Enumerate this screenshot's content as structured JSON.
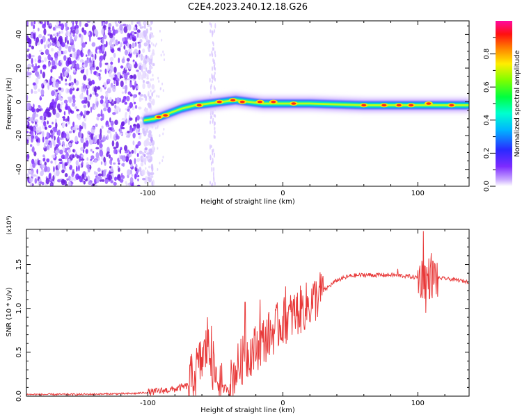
{
  "figure": {
    "title": "C2E4.2023.240.12.18.G26"
  },
  "colors": {
    "snr_line": "#e83a3a",
    "track_core": "#ff2a1a",
    "noise": "#7a2cff",
    "axis": "#000000"
  },
  "chart_data": [
    {
      "type": "heatmap",
      "xlabel": "Height of straight line (km)",
      "ylabel": "Frequency (Hz)",
      "xlim": [
        -190,
        138
      ],
      "ylim": [
        -50,
        48
      ],
      "xticks": [
        -100,
        0,
        100
      ],
      "yticks": [
        -40,
        -20,
        0,
        20,
        40
      ],
      "colorbar": {
        "label": "Normalized spectral amplitude",
        "range": [
          0,
          1
        ],
        "ticks": [
          "0.0",
          "0.2",
          "0.4",
          "0.6",
          "0.8"
        ],
        "colormap": "rainbow (white→violet→blue→cyan→green→yellow→red→magenta)"
      },
      "noise_region_x": [
        -190,
        -103
      ],
      "track": [
        {
          "x": -103,
          "y": -11
        },
        {
          "x": -95,
          "y": -10
        },
        {
          "x": -85,
          "y": -7
        },
        {
          "x": -75,
          "y": -4
        },
        {
          "x": -65,
          "y": -2
        },
        {
          "x": -55,
          "y": -1
        },
        {
          "x": -45,
          "y": 0
        },
        {
          "x": -35,
          "y": 1
        },
        {
          "x": -25,
          "y": 0
        },
        {
          "x": -15,
          "y": -1
        },
        {
          "x": 0,
          "y": -1
        },
        {
          "x": 20,
          "y": -1
        },
        {
          "x": 40,
          "y": -1.5
        },
        {
          "x": 60,
          "y": -2
        },
        {
          "x": 80,
          "y": -2
        },
        {
          "x": 100,
          "y": -2
        },
        {
          "x": 120,
          "y": -2
        },
        {
          "x": 138,
          "y": -2
        }
      ],
      "track_peaks": [
        {
          "x": -92,
          "y": -9
        },
        {
          "x": -87,
          "y": -8
        },
        {
          "x": -62,
          "y": -2
        },
        {
          "x": -47,
          "y": 0
        },
        {
          "x": -37,
          "y": 1
        },
        {
          "x": -30,
          "y": 0
        },
        {
          "x": -17,
          "y": 0
        },
        {
          "x": -7,
          "y": 0
        },
        {
          "x": 8,
          "y": -1
        },
        {
          "x": 60,
          "y": -2
        },
        {
          "x": 75,
          "y": -2
        },
        {
          "x": 86,
          "y": -2
        },
        {
          "x": 95,
          "y": -2
        },
        {
          "x": 108,
          "y": -1
        },
        {
          "x": 125,
          "y": -2
        }
      ]
    },
    {
      "type": "line",
      "xlabel": "Height of straight line (km)",
      "ylabel": "SNR (10 * v/v)",
      "y_multiplier": "(x10⁴)",
      "xlim": [
        -190,
        138
      ],
      "ylim": [
        0,
        1.9
      ],
      "xticks": [
        -100,
        0,
        100
      ],
      "yticks": [
        "0.0",
        "0.5",
        "1.0",
        "1.5"
      ],
      "series_envelope": [
        {
          "x": -190,
          "y": 0.02
        },
        {
          "x": -150,
          "y": 0.02
        },
        {
          "x": -110,
          "y": 0.03
        },
        {
          "x": -95,
          "y": 0.05
        },
        {
          "x": -80,
          "y": 0.08
        },
        {
          "x": -70,
          "y": 0.12
        },
        {
          "x": -62,
          "y": 0.35
        },
        {
          "x": -56,
          "y": 0.55
        },
        {
          "x": -50,
          "y": 0.25
        },
        {
          "x": -45,
          "y": 0.08
        },
        {
          "x": -40,
          "y": 0.1
        },
        {
          "x": -35,
          "y": 0.3
        },
        {
          "x": -28,
          "y": 0.45
        },
        {
          "x": -20,
          "y": 0.55
        },
        {
          "x": -10,
          "y": 0.7
        },
        {
          "x": 0,
          "y": 0.85
        },
        {
          "x": 10,
          "y": 0.95
        },
        {
          "x": 20,
          "y": 1.05
        },
        {
          "x": 30,
          "y": 1.2
        },
        {
          "x": 40,
          "y": 1.32
        },
        {
          "x": 50,
          "y": 1.37
        },
        {
          "x": 60,
          "y": 1.38
        },
        {
          "x": 70,
          "y": 1.38
        },
        {
          "x": 80,
          "y": 1.38
        },
        {
          "x": 90,
          "y": 1.37
        },
        {
          "x": 100,
          "y": 1.35
        },
        {
          "x": 110,
          "y": 1.35
        },
        {
          "x": 120,
          "y": 1.34
        },
        {
          "x": 130,
          "y": 1.32
        },
        {
          "x": 138,
          "y": 1.3
        }
      ],
      "series_spikes": [
        {
          "x": -56,
          "y": 0.9
        },
        {
          "x": -53,
          "y": 0.8
        },
        {
          "x": -28,
          "y": 1.07
        },
        {
          "x": -17,
          "y": 1.1
        },
        {
          "x": 2,
          "y": 1.25
        },
        {
          "x": 85,
          "y": 1.45
        },
        {
          "x": 104,
          "y": 1.88
        },
        {
          "x": 110,
          "y": 1.63
        },
        {
          "x": 106,
          "y": 0.95
        }
      ]
    }
  ]
}
